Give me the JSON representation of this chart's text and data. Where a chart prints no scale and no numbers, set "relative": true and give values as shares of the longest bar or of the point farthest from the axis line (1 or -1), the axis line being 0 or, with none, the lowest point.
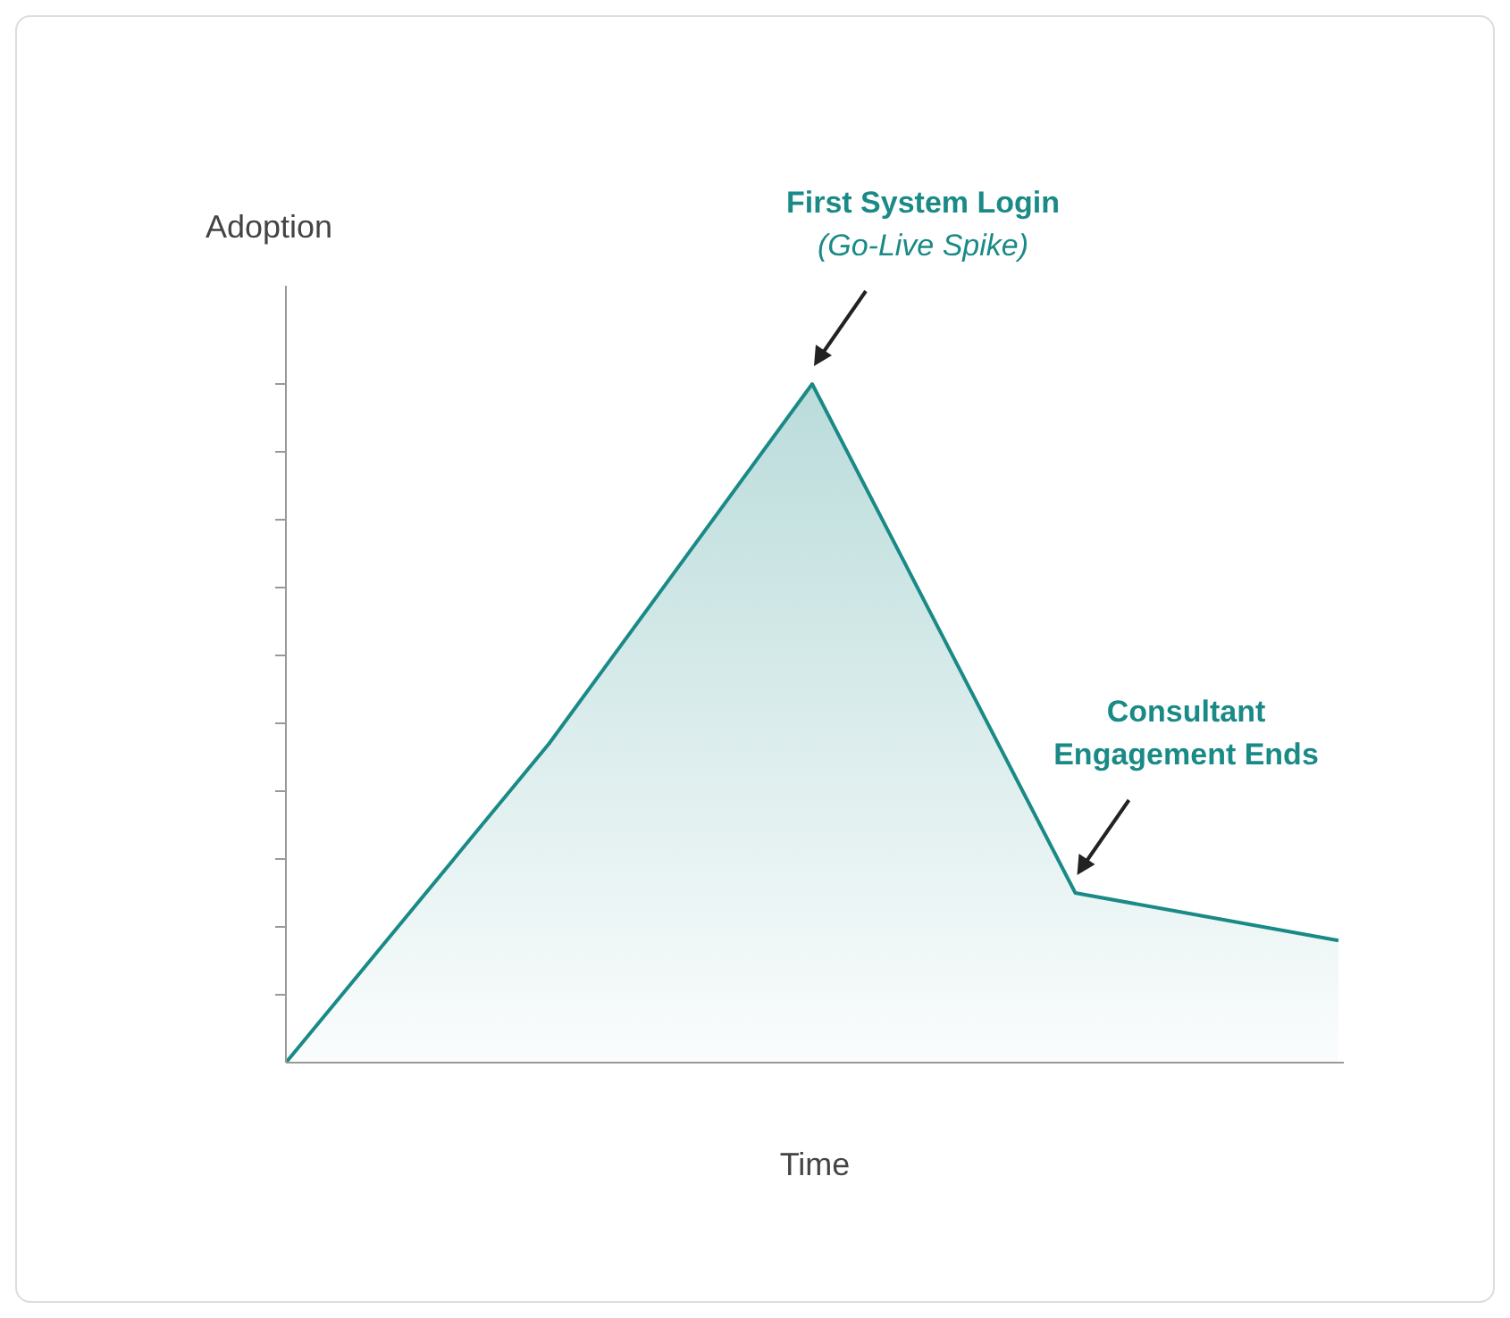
{
  "chart_data": {
    "type": "area",
    "relative": true,
    "xlabel": "Time",
    "ylabel": "Adoption",
    "categories": [
      null,
      null,
      null,
      null,
      null
    ],
    "series": [
      {
        "color": "#1a8a87",
        "values": [
          0,
          0.47,
          1,
          0.25,
          0.18
        ]
      }
    ],
    "annotations": [
      "First System Login\n(Go-Live Spike)",
      "Consultant\nEngagement Ends"
    ]
  }
}
